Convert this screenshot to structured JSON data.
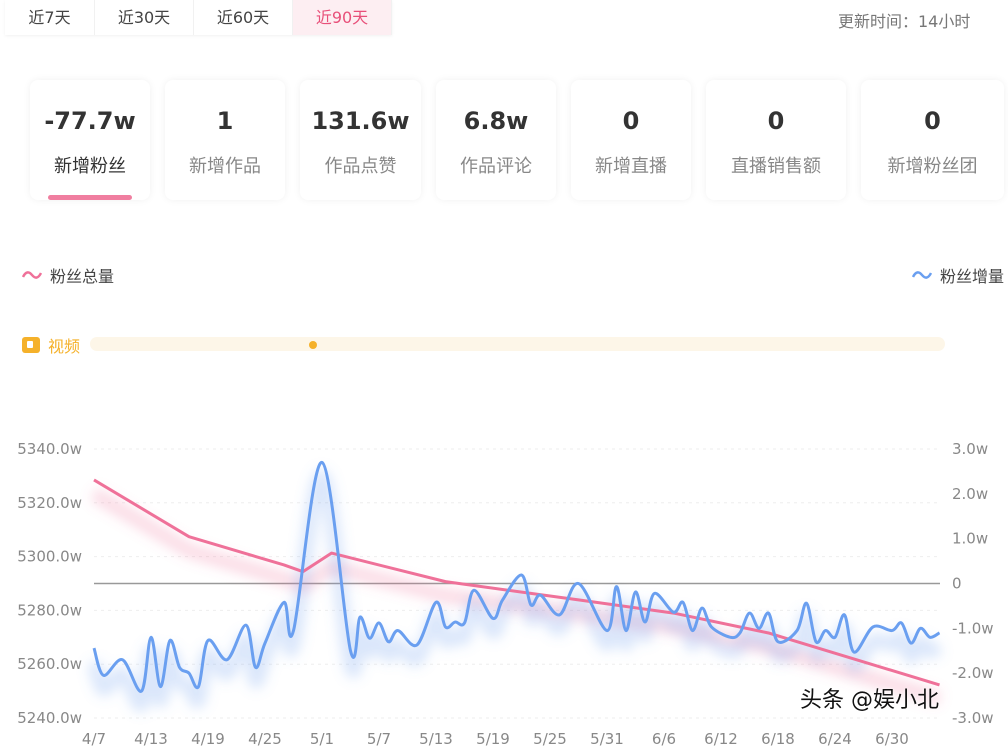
{
  "tabs": [
    {
      "label": "近7天"
    },
    {
      "label": "近30天"
    },
    {
      "label": "近60天"
    },
    {
      "label": "近90天",
      "active": true
    }
  ],
  "update_time": "更新时间：14小时",
  "cards": [
    {
      "value": "-77.7w",
      "label": "新增粉丝",
      "active": true
    },
    {
      "value": "1",
      "label": "新增作品"
    },
    {
      "value": "131.6w",
      "label": "作品点赞"
    },
    {
      "value": "6.8w",
      "label": "作品评论"
    },
    {
      "value": "0",
      "label": "新增直播"
    },
    {
      "value": "0",
      "label": "直播销售额"
    },
    {
      "value": "0",
      "label": "新增粉丝团"
    }
  ],
  "legend": {
    "left": "粉丝总量",
    "right": "粉丝增量"
  },
  "video": {
    "label": "视频",
    "markers": [
      "4/30"
    ]
  },
  "colors": {
    "total": "#ef7199",
    "increment": "#6a9ff0",
    "video": "#f5b12a",
    "accent": "#e8507a"
  },
  "watermark": "头条 @娱小北",
  "chart_data": {
    "type": "line",
    "x_start": "4/7",
    "x_end": "7/5",
    "x_ticks": [
      "4/7",
      "4/13",
      "4/19",
      "4/25",
      "5/1",
      "5/7",
      "5/13",
      "5/19",
      "5/25",
      "5/31",
      "6/6",
      "6/12",
      "6/18",
      "6/24",
      "6/30"
    ],
    "y_left": {
      "ticks": [
        "5340.0w",
        "5320.0w",
        "5300.0w",
        "5280.0w",
        "5260.0w",
        "5240.0w"
      ],
      "range": [
        5240,
        5340
      ],
      "unit": "w"
    },
    "y_right": {
      "ticks": [
        "3.0w",
        "2.0w",
        "1.0w",
        "0",
        "-1.0w",
        "-2.0w",
        "-3.0w"
      ],
      "range": [
        -3,
        3
      ],
      "unit": "w"
    },
    "grid": true,
    "series": [
      {
        "name": "粉丝总量",
        "axis": "left",
        "points": [
          [
            "4/7",
            5328.5
          ],
          [
            "4/17",
            5307.4
          ],
          [
            "4/27",
            5296.9
          ],
          [
            "4/29",
            5294.4
          ],
          [
            "5/2",
            5301.3
          ],
          [
            "5/14",
            5290.7
          ],
          [
            "5/28",
            5283.9
          ],
          [
            "6/7",
            5279.0
          ],
          [
            "6/17",
            5271.6
          ],
          [
            "7/5",
            5252.3
          ]
        ]
      },
      {
        "name": "粉丝增量",
        "axis": "right",
        "points": [
          [
            "4/7",
            -1.44
          ],
          [
            "4/8",
            -2.05
          ],
          [
            "4/10",
            -1.7
          ],
          [
            "4/12",
            -2.4
          ],
          [
            "4/13",
            -1.2
          ],
          [
            "4/14",
            -2.3
          ],
          [
            "4/15",
            -1.27
          ],
          [
            "4/16",
            -1.87
          ],
          [
            "4/17",
            -2.0
          ],
          [
            "4/18",
            -2.3
          ],
          [
            "4/19",
            -1.27
          ],
          [
            "4/21",
            -1.7
          ],
          [
            "4/23",
            -0.93
          ],
          [
            "4/24",
            -1.87
          ],
          [
            "4/25",
            -1.33
          ],
          [
            "4/27",
            -0.42
          ],
          [
            "4/28",
            -1.05
          ],
          [
            "5/1",
            2.7
          ],
          [
            "5/4",
            -1.5
          ],
          [
            "5/5",
            -0.75
          ],
          [
            "5/6",
            -1.22
          ],
          [
            "5/7",
            -0.88
          ],
          [
            "5/8",
            -1.3
          ],
          [
            "5/9",
            -1.05
          ],
          [
            "5/11",
            -1.37
          ],
          [
            "5/13",
            -0.42
          ],
          [
            "5/14",
            -0.97
          ],
          [
            "5/15",
            -0.86
          ],
          [
            "5/16",
            -0.88
          ],
          [
            "5/17",
            -0.15
          ],
          [
            "5/19",
            -0.78
          ],
          [
            "5/20",
            -0.37
          ],
          [
            "5/22",
            0.19
          ],
          [
            "5/23",
            -0.48
          ],
          [
            "5/24",
            -0.26
          ],
          [
            "5/26",
            -0.7
          ],
          [
            "5/28",
            0.0
          ],
          [
            "5/31",
            -1.05
          ],
          [
            "6/1",
            -0.07
          ],
          [
            "6/2",
            -1.05
          ],
          [
            "6/3",
            -0.19
          ],
          [
            "6/4",
            -0.86
          ],
          [
            "6/5",
            -0.22
          ],
          [
            "6/7",
            -0.64
          ],
          [
            "6/8",
            -0.42
          ],
          [
            "6/9",
            -1.05
          ],
          [
            "6/10",
            -0.55
          ],
          [
            "6/11",
            -0.97
          ],
          [
            "6/13",
            -1.2
          ],
          [
            "6/14",
            -1.1
          ],
          [
            "6/15",
            -0.66
          ],
          [
            "6/16",
            -1.0
          ],
          [
            "6/17",
            -0.66
          ],
          [
            "6/18",
            -1.3
          ],
          [
            "6/20",
            -1.05
          ],
          [
            "6/21",
            -0.44
          ],
          [
            "6/22",
            -1.3
          ],
          [
            "6/23",
            -1.05
          ],
          [
            "6/24",
            -1.2
          ],
          [
            "6/25",
            -0.7
          ],
          [
            "6/26",
            -1.53
          ],
          [
            "6/28",
            -0.97
          ],
          [
            "6/30",
            -1.05
          ],
          [
            "7/1",
            -0.88
          ],
          [
            "7/2",
            -1.33
          ],
          [
            "7/3",
            -1.0
          ],
          [
            "7/4",
            -1.2
          ],
          [
            "7/5",
            -1.1
          ]
        ]
      }
    ]
  }
}
